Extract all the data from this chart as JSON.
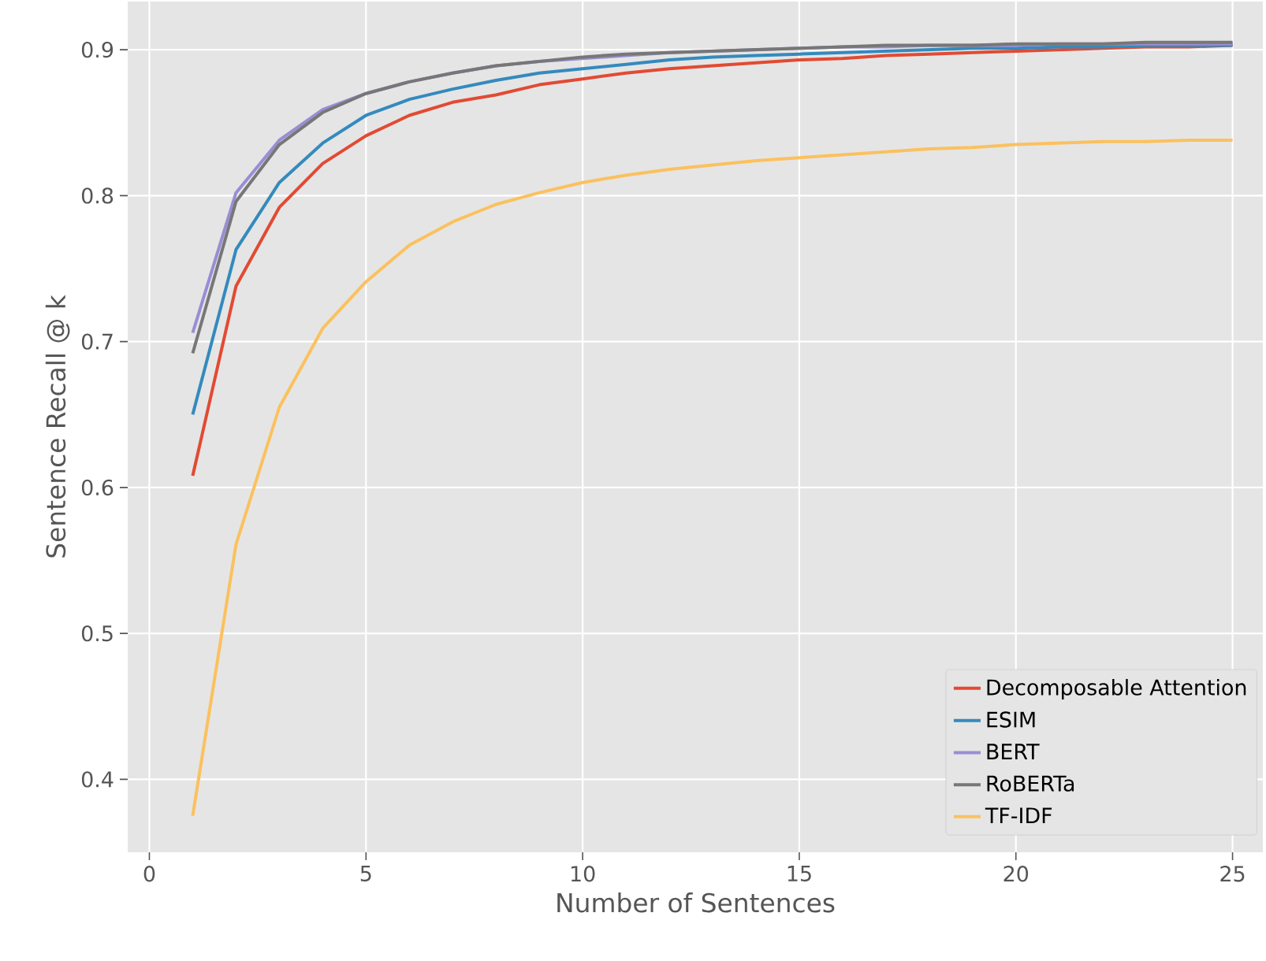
{
  "chart_data": {
    "type": "line",
    "xlabel": "Number of Sentences",
    "ylabel": "Sentence Recall @ k",
    "x": [
      1,
      2,
      3,
      4,
      5,
      6,
      7,
      8,
      9,
      10,
      11,
      12,
      13,
      14,
      15,
      16,
      17,
      18,
      19,
      20,
      21,
      22,
      23,
      24,
      25
    ],
    "series": [
      {
        "name": "Decomposable Attention",
        "color": "#e24a33",
        "values": [
          0.608,
          0.738,
          0.792,
          0.822,
          0.841,
          0.855,
          0.864,
          0.869,
          0.876,
          0.88,
          0.884,
          0.887,
          0.889,
          0.891,
          0.893,
          0.894,
          0.896,
          0.897,
          0.898,
          0.899,
          0.9,
          0.901,
          0.902,
          0.902,
          0.903
        ]
      },
      {
        "name": "ESIM",
        "color": "#348abd",
        "values": [
          0.65,
          0.763,
          0.809,
          0.836,
          0.855,
          0.866,
          0.873,
          0.879,
          0.884,
          0.887,
          0.89,
          0.893,
          0.895,
          0.896,
          0.897,
          0.898,
          0.899,
          0.9,
          0.901,
          0.901,
          0.902,
          0.902,
          0.903,
          0.903,
          0.903
        ]
      },
      {
        "name": "BERT",
        "color": "#988ed5",
        "values": [
          0.706,
          0.802,
          0.838,
          0.859,
          0.87,
          0.878,
          0.884,
          0.889,
          0.892,
          0.894,
          0.896,
          0.898,
          0.899,
          0.9,
          0.901,
          0.902,
          0.902,
          0.903,
          0.903,
          0.903,
          0.904,
          0.904,
          0.904,
          0.904,
          0.904
        ]
      },
      {
        "name": "RoBERTa",
        "color": "#777777",
        "values": [
          0.692,
          0.796,
          0.835,
          0.857,
          0.87,
          0.878,
          0.884,
          0.889,
          0.892,
          0.895,
          0.897,
          0.898,
          0.899,
          0.9,
          0.901,
          0.902,
          0.903,
          0.903,
          0.903,
          0.904,
          0.904,
          0.904,
          0.905,
          0.905,
          0.905
        ]
      },
      {
        "name": "TF-IDF",
        "color": "#fbc15e",
        "values": [
          0.375,
          0.561,
          0.655,
          0.709,
          0.741,
          0.766,
          0.782,
          0.794,
          0.802,
          0.809,
          0.814,
          0.818,
          0.821,
          0.824,
          0.826,
          0.828,
          0.83,
          0.832,
          0.833,
          0.835,
          0.836,
          0.837,
          0.837,
          0.838,
          0.838
        ]
      }
    ],
    "xlim": [
      -0.5,
      25.7
    ],
    "ylim": [
      0.35,
      0.933
    ],
    "xticks": [
      0,
      5,
      10,
      15,
      20,
      25
    ],
    "yticks": [
      0.4,
      0.5,
      0.6,
      0.7,
      0.8,
      0.9
    ],
    "grid": true,
    "legend": "bottom right",
    "marker": "none",
    "line_style": "solid"
  }
}
